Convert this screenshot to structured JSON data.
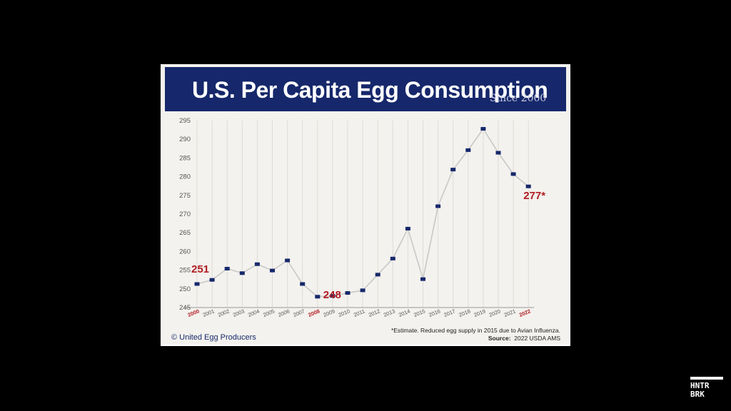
{
  "chart_data": {
    "type": "line",
    "title": "U.S. Per Capita Egg Consumption",
    "subtitle": "Since 2000",
    "x": [
      "2000",
      "2001",
      "2002",
      "2003",
      "2004",
      "2005",
      "2006",
      "2007",
      "2008",
      "2009",
      "2010",
      "2011",
      "2012",
      "2013",
      "2014",
      "2015",
      "2016",
      "2017",
      "2018",
      "2019",
      "2020",
      "2021",
      "2022"
    ],
    "highlighted_x": [
      "2000",
      "2008",
      "2022"
    ],
    "series": [
      {
        "values": [
          251.3,
          252.4,
          255.4,
          254.2,
          256.6,
          254.9,
          257.6,
          251.3,
          247.9,
          248.1,
          248.9,
          249.6,
          253.8,
          258.1,
          266.1,
          252.6,
          272.1,
          281.9,
          287.1,
          292.8,
          286.4,
          280.7,
          277.4
        ]
      }
    ],
    "ylim": [
      245,
      295
    ],
    "yticks": [
      245,
      250,
      255,
      260,
      265,
      270,
      275,
      280,
      285,
      290,
      295
    ],
    "annotations": [
      {
        "label": "251",
        "index": 0
      },
      {
        "label": "248",
        "index": 8
      },
      {
        "label": "277*",
        "index": 22
      }
    ],
    "grid": "vertical",
    "colors": {
      "line": "#c8c8c8",
      "marker": "#16286b",
      "highlight": "#b01c22",
      "banner": "#16286b"
    }
  },
  "copyright": "© United Egg Producers",
  "footnote": "*Estimate.  Reduced egg supply in 2015 due to Avian Influenza.",
  "source_label": "Source:",
  "source_text": "2022 USDA AMS",
  "logo": {
    "line1": "HNTR",
    "line2": "BRK"
  }
}
